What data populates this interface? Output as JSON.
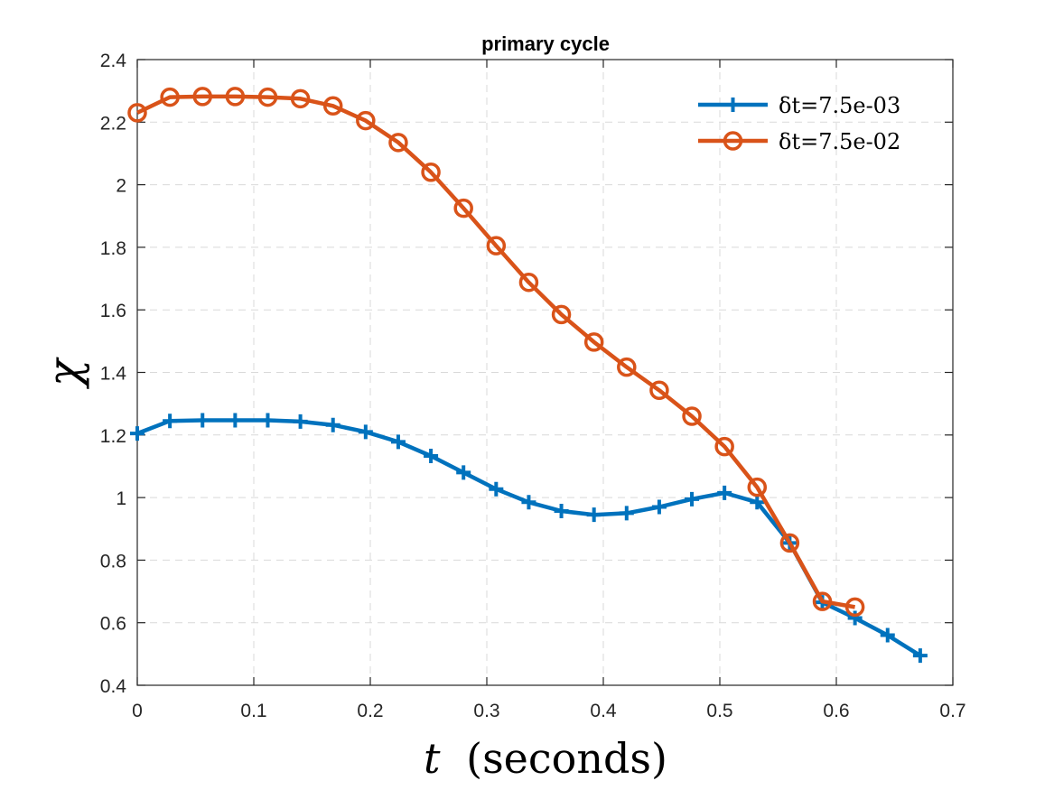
{
  "chart_data": {
    "type": "line",
    "title": "primary cycle",
    "xlabel": "t (seconds)",
    "xlabel_var": "t",
    "xlabel_unit": "(seconds)",
    "ylabel": "χ",
    "xlim": [
      0,
      0.7
    ],
    "ylim": [
      0.4,
      2.4
    ],
    "xticks": [
      "0",
      "0.1",
      "0.2",
      "0.3",
      "0.4",
      "0.5",
      "0.6",
      "0.7"
    ],
    "yticks": [
      "0.4",
      "0.6",
      "0.8",
      "1",
      "1.2",
      "1.4",
      "1.6",
      "1.8",
      "2",
      "2.2",
      "2.4"
    ],
    "grid": true,
    "legend_position": "top-right",
    "series": [
      {
        "name": "δt=7.5e-03",
        "color": "#0072BD",
        "marker": "plus",
        "points": [
          [
            0.0,
            1.205
          ],
          [
            0.028,
            1.245
          ],
          [
            0.056,
            1.247
          ],
          [
            0.084,
            1.247
          ],
          [
            0.112,
            1.247
          ],
          [
            0.14,
            1.243
          ],
          [
            0.168,
            1.232
          ],
          [
            0.196,
            1.21
          ],
          [
            0.224,
            1.178
          ],
          [
            0.252,
            1.133
          ],
          [
            0.28,
            1.08
          ],
          [
            0.308,
            1.027
          ],
          [
            0.336,
            0.985
          ],
          [
            0.364,
            0.957
          ],
          [
            0.392,
            0.945
          ],
          [
            0.42,
            0.95
          ],
          [
            0.448,
            0.97
          ],
          [
            0.476,
            0.995
          ],
          [
            0.504,
            1.015
          ],
          [
            0.532,
            0.985
          ],
          [
            0.56,
            0.855
          ],
          [
            0.588,
            0.665
          ],
          [
            0.616,
            0.615
          ],
          [
            0.644,
            0.56
          ],
          [
            0.672,
            0.495
          ]
        ]
      },
      {
        "name": "δt=7.5e-02",
        "color": "#D95319",
        "marker": "circle",
        "points": [
          [
            0.0,
            2.23
          ],
          [
            0.028,
            2.28
          ],
          [
            0.056,
            2.282
          ],
          [
            0.084,
            2.282
          ],
          [
            0.112,
            2.28
          ],
          [
            0.14,
            2.275
          ],
          [
            0.168,
            2.252
          ],
          [
            0.196,
            2.205
          ],
          [
            0.224,
            2.135
          ],
          [
            0.252,
            2.04
          ],
          [
            0.28,
            1.925
          ],
          [
            0.308,
            1.805
          ],
          [
            0.336,
            1.688
          ],
          [
            0.364,
            1.585
          ],
          [
            0.392,
            1.497
          ],
          [
            0.42,
            1.417
          ],
          [
            0.448,
            1.343
          ],
          [
            0.476,
            1.26
          ],
          [
            0.504,
            1.163
          ],
          [
            0.532,
            1.033
          ],
          [
            0.56,
            0.855
          ],
          [
            0.588,
            0.668
          ],
          [
            0.616,
            0.65
          ]
        ]
      }
    ]
  }
}
